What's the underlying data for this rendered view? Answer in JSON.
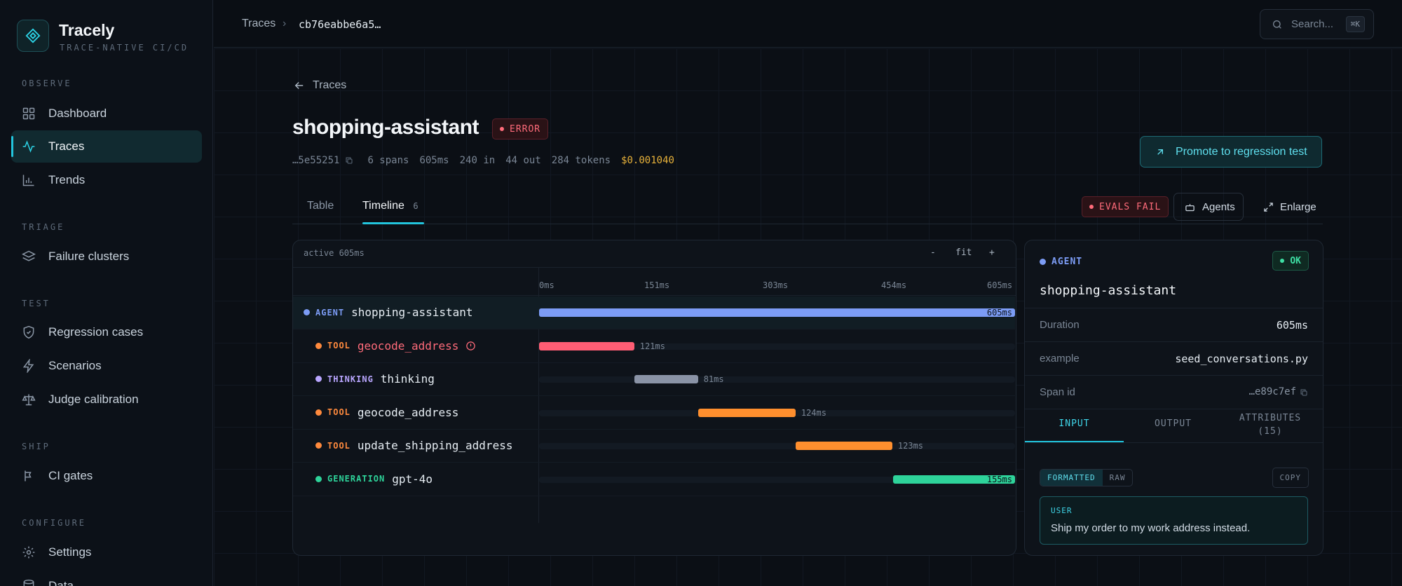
{
  "brand": {
    "name": "Tracely",
    "tagline": "TRACE-NATIVE CI/CD"
  },
  "sidebar": {
    "sections": [
      {
        "label": "OBSERVE",
        "items": [
          {
            "label": "Dashboard",
            "icon": "grid-icon"
          },
          {
            "label": "Traces",
            "icon": "activity-icon",
            "active": true
          },
          {
            "label": "Trends",
            "icon": "bar-chart-icon"
          }
        ]
      },
      {
        "label": "TRIAGE",
        "items": [
          {
            "label": "Failure clusters",
            "icon": "layers-icon"
          }
        ]
      },
      {
        "label": "TEST",
        "items": [
          {
            "label": "Regression cases",
            "icon": "shield-check-icon"
          },
          {
            "label": "Scenarios",
            "icon": "bolt-icon"
          },
          {
            "label": "Judge calibration",
            "icon": "scale-icon"
          }
        ]
      },
      {
        "label": "SHIP",
        "items": [
          {
            "label": "CI gates",
            "icon": "git-branch-icon"
          }
        ]
      },
      {
        "label": "CONFIGURE",
        "items": [
          {
            "label": "Settings",
            "icon": "gear-icon"
          },
          {
            "label": "Data",
            "icon": "database-icon"
          }
        ]
      }
    ]
  },
  "topbar": {
    "crumb_root": "Traces",
    "crumb_sep": "›",
    "crumb_current": "cb76eabbe6a5…",
    "search_placeholder": "Search...",
    "search_kbd": "⌘K"
  },
  "page": {
    "back_label": "Traces",
    "title": "shopping-assistant",
    "status": "ERROR",
    "trace_id": "…5e55251",
    "spans": "6 spans",
    "duration": "605ms",
    "tokens_in": "240 in",
    "tokens_out": "44 out",
    "tokens_total": "284 tokens",
    "cost": "$0.001040",
    "promote_label": "Promote to regression test"
  },
  "tabs": [
    {
      "label": "Table",
      "count": ""
    },
    {
      "label": "Timeline",
      "count": "6",
      "active": true
    }
  ],
  "actions": {
    "evals_label": "EVALS FAIL",
    "agents_label": "Agents",
    "enlarge_label": "Enlarge"
  },
  "timeline": {
    "active_label": "active 605ms",
    "zoom_out": "-",
    "fit": "fit",
    "zoom_in": "+",
    "total_ms": 605,
    "ticks": [
      "0ms",
      "151ms",
      "303ms",
      "454ms",
      "605ms"
    ],
    "spans": [
      {
        "category": "AGENT",
        "name": "shopping-assistant",
        "start_ms": 0,
        "duration_ms": 605,
        "label": "605ms",
        "color": "#7c9cf5",
        "dot": "#7c9cf5",
        "catcolor": "#7c9cf5",
        "depth": 0,
        "error": false
      },
      {
        "category": "TOOL",
        "name": "geocode_address",
        "start_ms": 0,
        "duration_ms": 121,
        "label": "121ms",
        "color": "#ff5d74",
        "dot": "#ff8a3d",
        "catcolor": "#ff8a3d",
        "depth": 1,
        "error": true
      },
      {
        "category": "THINKING",
        "name": "thinking",
        "start_ms": 121,
        "duration_ms": 81,
        "label": "81ms",
        "color": "#8a93a6",
        "dot": "#b9a6ff",
        "catcolor": "#b9a6ff",
        "depth": 1,
        "error": false
      },
      {
        "category": "TOOL",
        "name": "geocode_address",
        "start_ms": 202,
        "duration_ms": 124,
        "label": "124ms",
        "color": "#ff8f2e",
        "dot": "#ff8a3d",
        "catcolor": "#ff8a3d",
        "depth": 1,
        "error": false
      },
      {
        "category": "TOOL",
        "name": "update_shipping_address",
        "start_ms": 326,
        "duration_ms": 123,
        "label": "123ms",
        "color": "#ff8f2e",
        "dot": "#ff8a3d",
        "catcolor": "#ff8a3d",
        "depth": 1,
        "error": false
      },
      {
        "category": "GENERATION",
        "name": "gpt-4o",
        "start_ms": 450,
        "duration_ms": 155,
        "label": "155ms",
        "color": "#2ed39a",
        "dot": "#2ed39a",
        "catcolor": "#2ed39a",
        "depth": 1,
        "error": false
      }
    ]
  },
  "detail": {
    "category": "AGENT",
    "status": "OK",
    "name": "shopping-assistant",
    "fields": [
      {
        "key": "Duration",
        "value": "605ms"
      },
      {
        "key": "example",
        "value": "seed_conversations.py"
      },
      {
        "key": "Span id",
        "value": "…e89c7ef"
      }
    ],
    "tabs": [
      "INPUT",
      "OUTPUT",
      "ATTRIBUTES (15)"
    ],
    "format_formatted": "FORMATTED",
    "format_raw": "RAW",
    "copy_label": "COPY",
    "message_role": "USER",
    "message_text": "Ship my order to my work address instead."
  }
}
